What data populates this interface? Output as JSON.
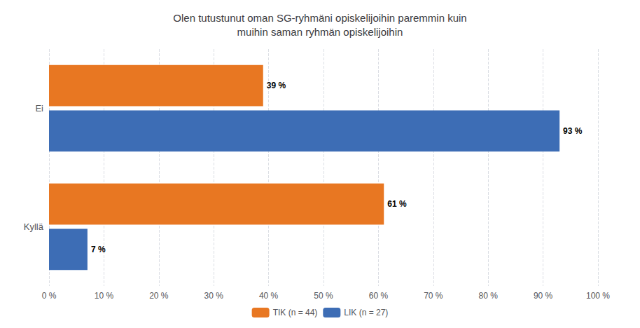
{
  "chart_data": {
    "type": "bar",
    "orientation": "horizontal",
    "title": "Olen tutustunut oman SG-ryhmäni opiskelijoihin paremmin kuin\nmuihin saman ryhmän opiskelijoihin",
    "categories": [
      "Ei",
      "Kyllä"
    ],
    "series": [
      {
        "name": "TIK (n = 44)",
        "color": "#E87722",
        "values": [
          39,
          61
        ],
        "value_labels": [
          "39 %",
          "61 %"
        ]
      },
      {
        "name": "LIK (n = 27)",
        "color": "#3D6DB5",
        "values": [
          93,
          7
        ],
        "value_labels": [
          "93 %",
          "7 %"
        ]
      }
    ],
    "xlim": [
      0,
      100
    ],
    "xticks": [
      {
        "value": 0,
        "label": "0 %"
      },
      {
        "value": 10,
        "label": "10 %"
      },
      {
        "value": 20,
        "label": "20 %"
      },
      {
        "value": 30,
        "label": "30 %"
      },
      {
        "value": 40,
        "label": "40 %"
      },
      {
        "value": 50,
        "label": "50 %"
      },
      {
        "value": 60,
        "label": "60 %"
      },
      {
        "value": 70,
        "label": "70 %"
      },
      {
        "value": 80,
        "label": "80 %"
      },
      {
        "value": 90,
        "label": "90 %"
      },
      {
        "value": 100,
        "label": "100 %"
      }
    ],
    "grid": true,
    "legend": "bottom",
    "data_labels": true
  }
}
